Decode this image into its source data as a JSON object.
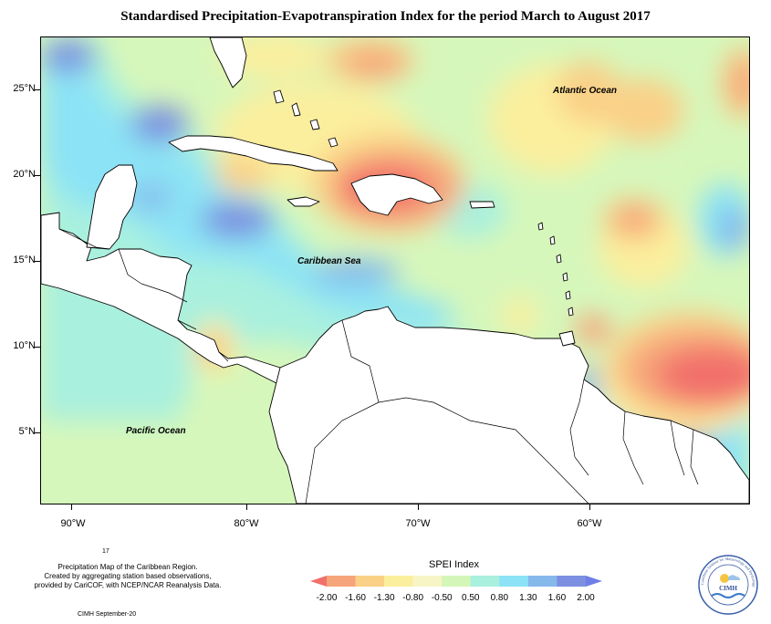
{
  "title": "Standardised Precipitation-Evapotranspiration Index for the period March to August 2017",
  "latitude_labels": [
    "25°N",
    "20°N",
    "15°N",
    "10°N",
    "5°N"
  ],
  "longitude_labels": [
    "90°W",
    "80°W",
    "70°W",
    "60°W"
  ],
  "ocean_labels": {
    "atlantic": "Atlantic Ocean",
    "caribbean": "Caribbean Sea",
    "pacific": "Pacific Ocean"
  },
  "legend": {
    "title": "SPEI Index",
    "tick_labels": [
      "-2.00",
      "-1.60",
      "-1.30",
      "-0.80",
      "-0.50",
      "0.50",
      "0.80",
      "1.30",
      "1.60",
      "2.00"
    ],
    "colors": [
      "#f2706a",
      "#f6a57a",
      "#fad087",
      "#fbef9e",
      "#f7f5c6",
      "#d4f6b8",
      "#a9f0de",
      "#8ce3f5",
      "#86b8ec",
      "#7c8fe0",
      "#6f7ee6"
    ]
  },
  "footer": {
    "number": "17",
    "line1": "Precipitation Map of the Caribbean Region.",
    "line2": "Created by aggregating station based observations,",
    "line3": "provided by CariCOF, with NCEP/NCAR Reanalysis Data.",
    "date": "CIMH September-20"
  },
  "logo": {
    "text": "CIMH",
    "ring_text": "Caribbean Institute for Meteorology and Hydrology"
  }
}
